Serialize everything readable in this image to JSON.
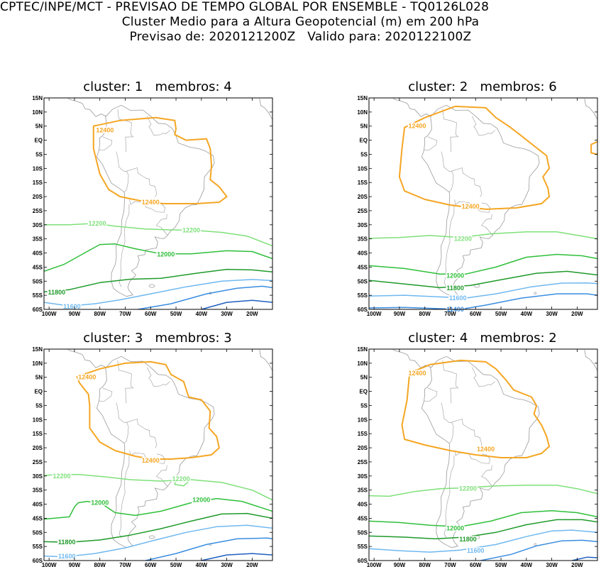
{
  "header": {
    "line1": "CPTEC/INPE/MCT - PREVISAO DE TEMPO GLOBAL POR ENSEMBLE - TQ0126L028",
    "line2": "Cluster Medio para a Altura Geopotencial (m) em 200 hPa",
    "line3": "Previsao de: 2020121200Z   Valido para: 2020122100Z"
  },
  "lat_ticks": [
    "15N",
    "10N",
    "5N",
    "EQ",
    "5S",
    "10S",
    "15S",
    "20S",
    "25S",
    "30S",
    "35S",
    "40S",
    "45S",
    "50S",
    "55S",
    "60S"
  ],
  "lon_ticks": [
    "100W",
    "90W",
    "80W",
    "70W",
    "60W",
    "50W",
    "40W",
    "30W",
    "20W"
  ],
  "colors": {
    "c12400": "#f5a623",
    "c12200": "#7ee07a",
    "c12000": "#2fbf3a",
    "c11800": "#1f9a2a",
    "c11600": "#6fb8f0",
    "c11400": "#3a8de0",
    "c11200": "#1f5fc0",
    "coast": "#9a9a9a"
  },
  "panels": [
    {
      "title": "cluster: 1   membros: 4",
      "labels": [
        {
          "text": "12400",
          "lon": -78,
          "lat": 3.5,
          "cls": "c12400"
        },
        {
          "text": "12400",
          "lon": -60,
          "lat": -22,
          "cls": "c12400"
        },
        {
          "text": "12200",
          "lon": -81,
          "lat": -29.5,
          "cls": "c12200"
        },
        {
          "text": "12200",
          "lon": -44,
          "lat": -32,
          "cls": "c12200"
        },
        {
          "text": "12000",
          "lon": -54,
          "lat": -40.5,
          "cls": "c12000"
        },
        {
          "text": "11800",
          "lon": -97,
          "lat": -54,
          "cls": "c11800"
        },
        {
          "text": "11600",
          "lon": -91,
          "lat": -59,
          "cls": "c11600"
        }
      ]
    },
    {
      "title": "cluster: 2   membros: 6",
      "labels": [
        {
          "text": "12400",
          "lon": -83,
          "lat": 5,
          "cls": "c12400"
        },
        {
          "text": "12400",
          "lon": -62,
          "lat": -23.5,
          "cls": "c12400"
        },
        {
          "text": "12200",
          "lon": -65,
          "lat": -35,
          "cls": "c12200"
        },
        {
          "text": "12000",
          "lon": -68,
          "lat": -48,
          "cls": "c12000"
        },
        {
          "text": "11800",
          "lon": -68,
          "lat": -52.5,
          "cls": "c11800"
        },
        {
          "text": "11600",
          "lon": -67,
          "lat": -56,
          "cls": "c11600"
        },
        {
          "text": "11400",
          "lon": -68,
          "lat": -60,
          "cls": "c11400"
        }
      ]
    },
    {
      "title": "cluster: 3   membros: 3",
      "labels": [
        {
          "text": "12400",
          "lon": -85,
          "lat": 5,
          "cls": "c12400"
        },
        {
          "text": "12400",
          "lon": -60,
          "lat": -24.5,
          "cls": "c12400"
        },
        {
          "text": "12200",
          "lon": -95,
          "lat": -30,
          "cls": "c12200"
        },
        {
          "text": "12200",
          "lon": -48,
          "lat": -31,
          "cls": "c12200"
        },
        {
          "text": "12000",
          "lon": -80,
          "lat": -39.5,
          "cls": "c12000"
        },
        {
          "text": "12000",
          "lon": -40,
          "lat": -38.5,
          "cls": "c12000"
        },
        {
          "text": "11800",
          "lon": -93,
          "lat": -53.5,
          "cls": "c11800"
        },
        {
          "text": "11600",
          "lon": -93,
          "lat": -58.5,
          "cls": "c11600"
        }
      ]
    },
    {
      "title": "cluster: 4   membros: 2",
      "labels": [
        {
          "text": "12400",
          "lon": -83,
          "lat": 6.5,
          "cls": "c12400"
        },
        {
          "text": "12400",
          "lon": -56,
          "lat": -20.5,
          "cls": "c12400"
        },
        {
          "text": "12200",
          "lon": -63,
          "lat": -34.5,
          "cls": "c12200"
        },
        {
          "text": "12000",
          "lon": -68,
          "lat": -48.5,
          "cls": "c12000"
        },
        {
          "text": "11800",
          "lon": -63,
          "lat": -52.5,
          "cls": "c11800"
        },
        {
          "text": "11600",
          "lon": -60,
          "lat": -56.5,
          "cls": "c11600"
        }
      ]
    }
  ]
}
